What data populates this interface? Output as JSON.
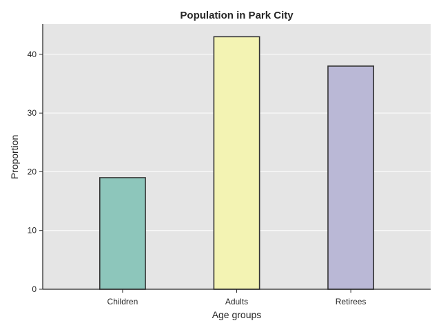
{
  "chart_data": {
    "type": "bar",
    "title": "Population in Park City",
    "xlabel": "Age groups",
    "ylabel": "Proportion",
    "categories": [
      "Children",
      "Adults",
      "Retirees"
    ],
    "values": [
      19,
      43,
      38
    ],
    "colors": [
      "#8dc6bb",
      "#f3f3b3",
      "#bab8d6"
    ],
    "bar_edge_color": "#333333",
    "plot_background": "#e5e5e5",
    "grid": true,
    "grid_axis": "y",
    "grid_color": "#ffffff",
    "ylim": [
      0,
      45.15
    ],
    "yticks": [
      0,
      10,
      20,
      30,
      40
    ],
    "ytick_labels": [
      "0",
      "10",
      "20",
      "30",
      "40"
    ]
  }
}
